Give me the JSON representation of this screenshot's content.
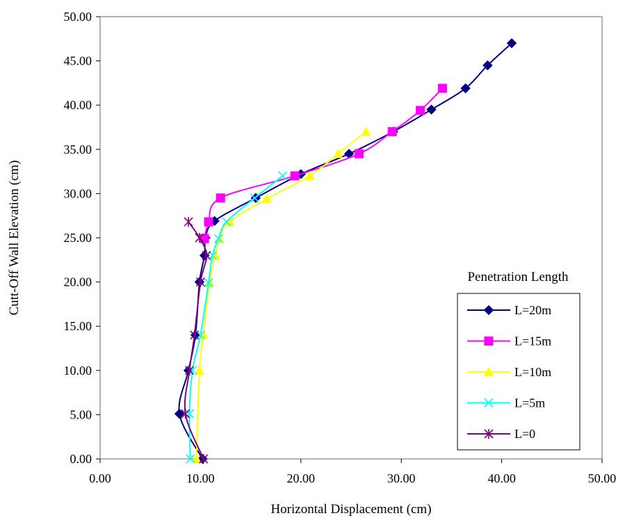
{
  "chart_data": {
    "type": "line",
    "title": "",
    "xlabel": "Horizontal Displacement (cm)",
    "ylabel": "Cutt-Off Wall Elevation (cm)",
    "xlim": [
      0,
      50
    ],
    "ylim": [
      0,
      50
    ],
    "xticks": [
      "0.00",
      "10.00",
      "20.00",
      "30.00",
      "40.00",
      "50.00"
    ],
    "yticks": [
      "0.00",
      "5.00",
      "10.00",
      "15.00",
      "20.00",
      "25.00",
      "30.00",
      "35.00",
      "40.00",
      "45.00",
      "50.00"
    ],
    "grid": false,
    "legend": {
      "title": "Penetration Length",
      "position": "right"
    },
    "series": [
      {
        "name": "L=20m",
        "color": "#000080",
        "marker": "diamond",
        "points": [
          [
            10.2,
            0
          ],
          [
            7.9,
            5.1
          ],
          [
            8.8,
            10
          ],
          [
            9.5,
            14
          ],
          [
            9.9,
            20
          ],
          [
            10.4,
            23
          ],
          [
            10.5,
            25
          ],
          [
            11.4,
            26.9
          ],
          [
            15.5,
            29.5
          ],
          [
            20.0,
            32.2
          ],
          [
            24.8,
            34.5
          ],
          [
            29.2,
            37
          ],
          [
            33.0,
            39.5
          ],
          [
            36.4,
            41.9
          ],
          [
            38.6,
            44.5
          ],
          [
            41.0,
            47
          ]
        ]
      },
      {
        "name": "L=15m",
        "color": "#ff00ff",
        "marker": "square",
        "points": [
          [
            10.4,
            24.9
          ],
          [
            10.8,
            26.8
          ],
          [
            12.0,
            29.5
          ],
          [
            19.4,
            32
          ],
          [
            25.8,
            34.5
          ],
          [
            29.1,
            37
          ],
          [
            31.9,
            39.4
          ],
          [
            34.1,
            41.9
          ]
        ]
      },
      {
        "name": "L=10m",
        "color": "#ffff00",
        "marker": "triangle",
        "points": [
          [
            9.6,
            0
          ],
          [
            9.9,
            10
          ],
          [
            10.3,
            14
          ],
          [
            10.9,
            19.9
          ],
          [
            11.5,
            23
          ],
          [
            11.9,
            24.9
          ],
          [
            12.9,
            26.8
          ],
          [
            16.6,
            29.4
          ],
          [
            20.9,
            32
          ],
          [
            23.7,
            34.5
          ],
          [
            26.5,
            37
          ]
        ]
      },
      {
        "name": "L=5m",
        "color": "#00ffff",
        "marker": "x",
        "points": [
          [
            9.0,
            0
          ],
          [
            8.9,
            5.1
          ],
          [
            9.2,
            10
          ],
          [
            10.0,
            14
          ],
          [
            10.8,
            19.9
          ],
          [
            11.2,
            23
          ],
          [
            11.8,
            24.9
          ],
          [
            12.6,
            26.8
          ],
          [
            15.4,
            29.5
          ],
          [
            18.2,
            32
          ]
        ]
      },
      {
        "name": "L=0",
        "color": "#800080",
        "marker": "asterisk",
        "points": [
          [
            10.3,
            0
          ],
          [
            8.5,
            5.1
          ],
          [
            8.9,
            10
          ],
          [
            9.4,
            14
          ],
          [
            10.0,
            20
          ],
          [
            10.6,
            23
          ],
          [
            9.9,
            25
          ],
          [
            8.8,
            26.8
          ]
        ]
      }
    ]
  }
}
